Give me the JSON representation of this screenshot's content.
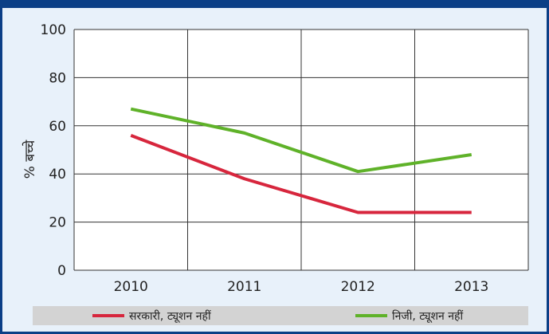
{
  "chart_data": {
    "type": "line",
    "x": [
      "2010",
      "2011",
      "2012",
      "2013"
    ],
    "series": [
      {
        "name": "सरकारी, ट्यूशन नहीं",
        "color": "#d7263d",
        "values": [
          56,
          38,
          24,
          24
        ]
      },
      {
        "name": "निजी, ट्यूशन नहीं",
        "color": "#5fb229",
        "values": [
          67,
          57,
          41,
          48
        ]
      }
    ],
    "ylabel": "% बच्चे",
    "xlabel": "",
    "ylim": [
      0,
      100
    ],
    "yticks": [
      0,
      20,
      40,
      60,
      80,
      100
    ],
    "grid": true,
    "legend_position": "bottom"
  }
}
